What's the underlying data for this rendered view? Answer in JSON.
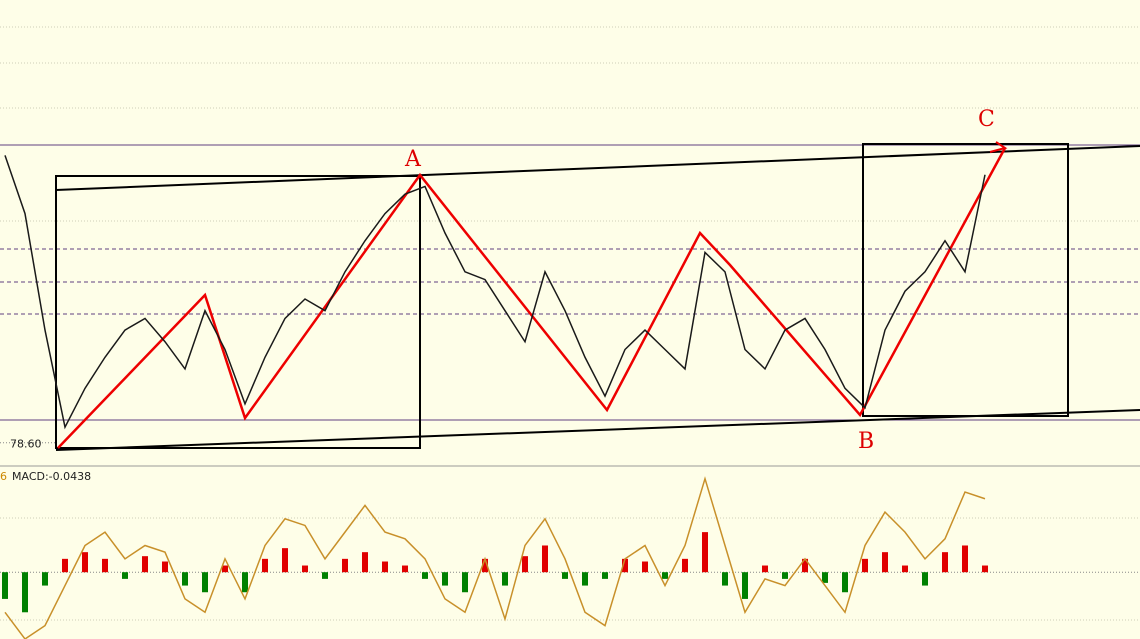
{
  "chart_data": [
    {
      "type": "line",
      "color": "#1a1a1a",
      "values": [
        86.0,
        84.5,
        81.5,
        79.0,
        80.0,
        80.8,
        81.5,
        81.8,
        81.2,
        80.5,
        82.0,
        81.0,
        79.6,
        80.8,
        81.8,
        82.3,
        82.0,
        83.0,
        83.8,
        84.5,
        85.0,
        85.2,
        84.0,
        83.0,
        82.8,
        82.0,
        81.2,
        83.0,
        82.0,
        80.8,
        79.8,
        81.0,
        81.5,
        81.0,
        80.5,
        83.5,
        83.0,
        81.0,
        80.5,
        81.5,
        81.8,
        81.0,
        80.0,
        79.5,
        81.5,
        82.5,
        83.0,
        83.8,
        83.0,
        85.5
      ],
      "ylim": [
        78,
        90
      ],
      "yticks": [
        {
          "value": 78.6,
          "label": "78.60"
        }
      ],
      "annotations": [
        "A",
        "B",
        "C"
      ]
    },
    {
      "type": "bar",
      "subtitle": "6",
      "title": "MACD:-0.0438",
      "ylim": [
        -0.5,
        0.78
      ],
      "color_up": "#e00000",
      "color_down": "#008000",
      "series": [
        {
          "values": [
            -0.2,
            -0.3,
            -0.1,
            0.1,
            0.15,
            0.1,
            -0.05,
            0.12,
            0.08,
            -0.1,
            -0.15,
            0.05,
            -0.15,
            0.1,
            0.18,
            0.05,
            -0.05,
            0.1,
            0.15,
            0.08,
            0.05,
            -0.05,
            -0.1,
            -0.15,
            0.1,
            -0.1,
            0.12,
            0.2,
            -0.05,
            -0.1,
            -0.05,
            0.1,
            0.08,
            -0.05,
            0.1,
            0.3,
            -0.1,
            -0.2,
            0.05,
            -0.05,
            0.1,
            -0.08,
            -0.15,
            0.1,
            0.15,
            0.05,
            -0.1,
            0.15,
            0.2,
            0.05
          ]
        },
        {
          "values": [
            -0.3,
            -0.5,
            -0.4,
            -0.1,
            0.2,
            0.3,
            0.1,
            0.2,
            0.15,
            -0.2,
            -0.3,
            0.1,
            -0.2,
            0.2,
            0.4,
            0.35,
            0.1,
            0.3,
            0.5,
            0.3,
            0.25,
            0.1,
            -0.2,
            -0.3,
            0.1,
            -0.35,
            0.2,
            0.4,
            0.1,
            -0.3,
            -0.4,
            0.1,
            0.2,
            -0.1,
            0.2,
            0.7,
            0.2,
            -0.3,
            -0.05,
            -0.1,
            0.1,
            -0.1,
            -0.3,
            0.2,
            0.45,
            0.3,
            0.1,
            0.25,
            0.6,
            0.55
          ],
          "color": "#c8902a"
        }
      ]
    }
  ]
}
